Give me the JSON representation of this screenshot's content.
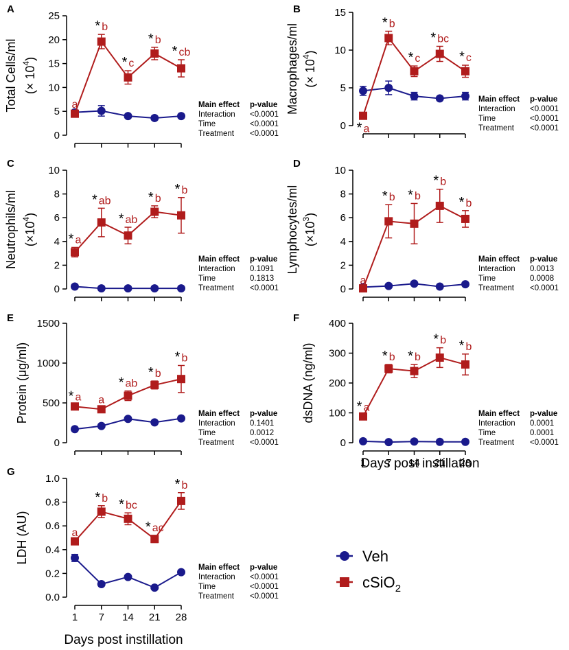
{
  "colors": {
    "veh": "#1a1a8c",
    "csio2": "#b01c1c",
    "axis": "#000000",
    "letter": "#b01c1c"
  },
  "legend": {
    "veh": "Veh",
    "csio2_main": "cSiO",
    "csio2_sub": "2"
  },
  "x_title": "Days post instillation",
  "days": [
    "1",
    "7",
    "14",
    "21",
    "28"
  ],
  "stats_header": {
    "effect": "Main effect",
    "p": "p-value"
  },
  "chart_data": [
    {
      "id": "A",
      "type": "line",
      "ylabel": "Total Cells/ml",
      "yunit": "(× 10",
      "yunit_exp": "4",
      "yunit_end": ")",
      "ylim": [
        0,
        25
      ],
      "yticks": [
        "0",
        "5",
        "10",
        "15",
        "20",
        "25"
      ],
      "x": [
        1,
        7,
        14,
        21,
        28
      ],
      "series": [
        {
          "name": "Veh",
          "values": [
            4.8,
            5.1,
            4.0,
            3.6,
            4.0
          ],
          "errors": [
            0.4,
            1.1,
            0.4,
            0.4,
            0.4
          ]
        },
        {
          "name": "cSiO2",
          "values": [
            4.5,
            19.6,
            12.1,
            17.1,
            14.0
          ],
          "errors": [
            0.4,
            1.5,
            1.4,
            1.3,
            1.8
          ],
          "labels": [
            {
              "star": "",
              "letter": "a"
            },
            {
              "star": "*",
              "letter": "b"
            },
            {
              "star": "*",
              "letter": "c"
            },
            {
              "star": "*",
              "letter": "b"
            },
            {
              "star": "*",
              "letter": "cb"
            }
          ]
        }
      ],
      "stats": [
        {
          "effect": "Interaction",
          "p": "<0.0001"
        },
        {
          "effect": "Time",
          "p": "<0.0001"
        },
        {
          "effect": "Treatment",
          "p": "<0.0001"
        }
      ]
    },
    {
      "id": "B",
      "type": "line",
      "ylabel": "Macrophages/ml",
      "yunit": "(× 10",
      "yunit_exp": "4",
      "yunit_end": ")",
      "ylim": [
        0,
        15
      ],
      "yticks": [
        "0",
        "5",
        "10",
        "15"
      ],
      "x": [
        1,
        7,
        14,
        21,
        28
      ],
      "series": [
        {
          "name": "Veh",
          "values": [
            4.6,
            5.0,
            3.9,
            3.6,
            3.9
          ],
          "errors": [
            0.6,
            0.9,
            0.5,
            0.2,
            0.5
          ]
        },
        {
          "name": "cSiO2",
          "values": [
            1.3,
            11.6,
            7.2,
            9.5,
            7.2
          ],
          "errors": [
            0.2,
            0.9,
            0.7,
            1.0,
            0.8
          ],
          "labels": [
            {
              "star": "*",
              "letter": "a",
              "below": true
            },
            {
              "star": "*",
              "letter": "b"
            },
            {
              "star": "*",
              "letter": "c"
            },
            {
              "star": "*",
              "letter": "bc"
            },
            {
              "star": "*",
              "letter": "c"
            }
          ]
        }
      ],
      "stats": [
        {
          "effect": "Interaction",
          "p": "<0.0001"
        },
        {
          "effect": "Time",
          "p": "<0.0001"
        },
        {
          "effect": "Treatment",
          "p": "<0.0001"
        }
      ]
    },
    {
      "id": "C",
      "type": "line",
      "ylabel": "Neutrophils/ml",
      "yunit": "(×10",
      "yunit_exp": "4",
      "yunit_end": ")",
      "ylim": [
        0,
        10
      ],
      "yticks": [
        "0",
        "2",
        "4",
        "6",
        "8",
        "10"
      ],
      "x": [
        1,
        7,
        14,
        21,
        28
      ],
      "series": [
        {
          "name": "Veh",
          "values": [
            0.2,
            0.05,
            0.05,
            0.05,
            0.05
          ],
          "errors": [
            0.1,
            0.05,
            0.05,
            0.05,
            0.05
          ]
        },
        {
          "name": "cSiO2",
          "values": [
            3.1,
            5.6,
            4.5,
            6.5,
            6.2
          ],
          "errors": [
            0.4,
            1.2,
            0.7,
            0.5,
            1.5
          ],
          "labels": [
            {
              "star": "*",
              "letter": "a"
            },
            {
              "star": "*",
              "letter": "ab"
            },
            {
              "star": "*",
              "letter": "ab"
            },
            {
              "star": "*",
              "letter": "b"
            },
            {
              "star": "*",
              "letter": "b"
            }
          ]
        }
      ],
      "stats": [
        {
          "effect": "Interaction",
          "p": "0.1091"
        },
        {
          "effect": "Time",
          "p": "0.1813"
        },
        {
          "effect": "Treatment",
          "p": "<0.0001"
        }
      ]
    },
    {
      "id": "D",
      "type": "line",
      "ylabel": "Lymphocytes/ml",
      "yunit": "(×10",
      "yunit_exp": "3",
      "yunit_end": ")",
      "ylim": [
        0,
        10
      ],
      "yticks": [
        "0",
        "2",
        "4",
        "6",
        "8",
        "10"
      ],
      "x": [
        1,
        7,
        14,
        21,
        28
      ],
      "series": [
        {
          "name": "Veh",
          "values": [
            0.15,
            0.25,
            0.45,
            0.2,
            0.4
          ],
          "errors": [
            0.05,
            0.05,
            0.05,
            0.05,
            0.05
          ]
        },
        {
          "name": "cSiO2",
          "values": [
            0.05,
            5.7,
            5.5,
            7.0,
            5.9
          ],
          "errors": [
            0.05,
            1.4,
            1.7,
            1.4,
            0.7
          ],
          "labels": [
            {
              "star": "",
              "letter": "a"
            },
            {
              "star": "*",
              "letter": "b"
            },
            {
              "star": "*",
              "letter": "b"
            },
            {
              "star": "*",
              "letter": "b"
            },
            {
              "star": "*",
              "letter": "b"
            }
          ]
        }
      ],
      "stats": [
        {
          "effect": "Interaction",
          "p": "0.0013"
        },
        {
          "effect": "Time",
          "p": "0.0008"
        },
        {
          "effect": "Treatment",
          "p": "<0.0001"
        }
      ]
    },
    {
      "id": "E",
      "type": "line",
      "ylabel": "Protein (μg/ml)",
      "ylim": [
        0,
        1500
      ],
      "yticks": [
        "0",
        "500",
        "1000",
        "1500"
      ],
      "x": [
        1,
        7,
        14,
        21,
        28
      ],
      "series": [
        {
          "name": "Veh",
          "values": [
            170,
            210,
            300,
            255,
            305
          ],
          "errors": [
            15,
            15,
            15,
            15,
            15
          ]
        },
        {
          "name": "cSiO2",
          "values": [
            455,
            420,
            590,
            725,
            800
          ],
          "errors": [
            25,
            25,
            60,
            50,
            170
          ],
          "labels": [
            {
              "star": "*",
              "letter": "a"
            },
            {
              "star": "",
              "letter": "a"
            },
            {
              "star": "*",
              "letter": "ab"
            },
            {
              "star": "*",
              "letter": "b"
            },
            {
              "star": "*",
              "letter": "b"
            }
          ]
        }
      ],
      "stats": [
        {
          "effect": "Interaction",
          "p": "0.1401"
        },
        {
          "effect": "Time",
          "p": "0.0012"
        },
        {
          "effect": "Treatment",
          "p": "<0.0001"
        }
      ]
    },
    {
      "id": "F",
      "type": "line",
      "ylabel": "dsDNA (ng/ml)",
      "ylim": [
        0,
        400
      ],
      "yticks": [
        "0",
        "100",
        "200",
        "300",
        "400"
      ],
      "x": [
        1,
        7,
        14,
        21,
        28
      ],
      "series": [
        {
          "name": "Veh",
          "values": [
            5,
            2,
            4,
            3,
            3
          ],
          "errors": [
            2,
            2,
            2,
            2,
            2
          ]
        },
        {
          "name": "cSiO2",
          "values": [
            88,
            248,
            240,
            285,
            262
          ],
          "errors": [
            5,
            14,
            22,
            33,
            35
          ],
          "labels": [
            {
              "star": "*",
              "letter": "a"
            },
            {
              "star": "*",
              "letter": "b"
            },
            {
              "star": "*",
              "letter": "b"
            },
            {
              "star": "*",
              "letter": "b"
            },
            {
              "star": "*",
              "letter": "b"
            }
          ]
        }
      ],
      "stats": [
        {
          "effect": "Interaction",
          "p": "0.0001"
        },
        {
          "effect": "Time",
          "p": "0.0001"
        },
        {
          "effect": "Treatment",
          "p": "<0.0001"
        }
      ]
    },
    {
      "id": "G",
      "type": "line",
      "ylabel": "LDH (AU)",
      "ylim": [
        0,
        1.0
      ],
      "yticks": [
        "0.0",
        "0.2",
        "0.4",
        "0.6",
        "0.8",
        "1.0"
      ],
      "x": [
        1,
        7,
        14,
        21,
        28
      ],
      "series": [
        {
          "name": "Veh",
          "values": [
            0.33,
            0.11,
            0.17,
            0.08,
            0.21
          ],
          "errors": [
            0.03,
            0.01,
            0.01,
            0.01,
            0.01
          ]
        },
        {
          "name": "cSiO2",
          "values": [
            0.47,
            0.72,
            0.66,
            0.49,
            0.81
          ],
          "errors": [
            0.01,
            0.05,
            0.05,
            0.03,
            0.07
          ],
          "labels": [
            {
              "star": "",
              "letter": "a"
            },
            {
              "star": "*",
              "letter": "b"
            },
            {
              "star": "*",
              "letter": "bc"
            },
            {
              "star": "*",
              "letter": "ac"
            },
            {
              "star": "*",
              "letter": "b"
            }
          ]
        }
      ],
      "stats": [
        {
          "effect": "Interaction",
          "p": "<0.0001"
        },
        {
          "effect": "Time",
          "p": "<0.0001"
        },
        {
          "effect": "Treatment",
          "p": "<0.0001"
        }
      ]
    }
  ]
}
